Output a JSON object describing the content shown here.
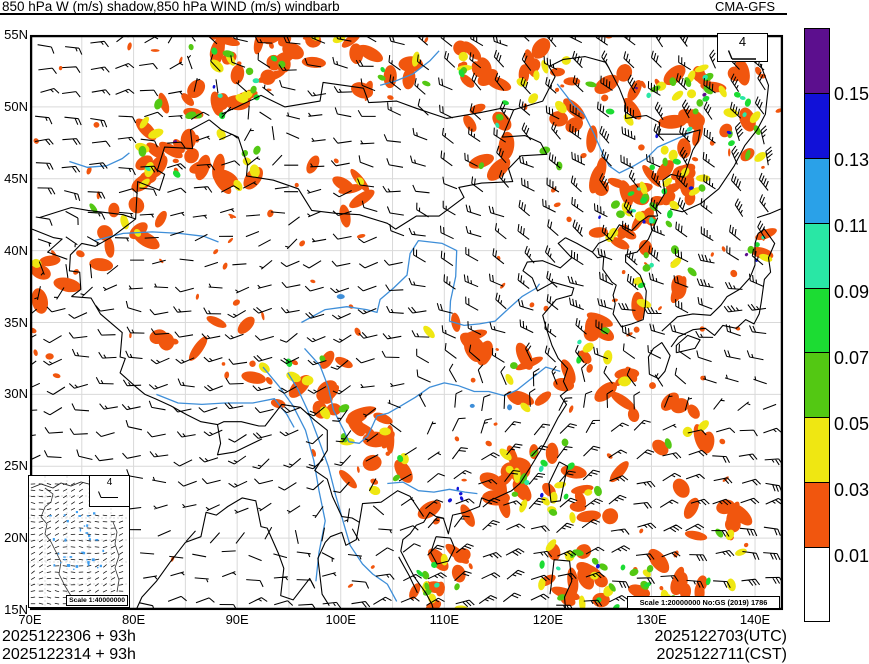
{
  "title": "850 hPa W (m/s) shadow,850 hPa WIND (m/s) windbarb",
  "model": "CMA-GFS",
  "footer": {
    "init_utc": "2025122306 + 93h",
    "init_cst": "2025122314 + 93h",
    "valid_utc": "2025122703(UTC)",
    "valid_cst": "2025122711(CST)"
  },
  "axes": {
    "x_ticks": [
      "70E",
      "80E",
      "90E",
      "100E",
      "110E",
      "120E",
      "130E",
      "140E"
    ],
    "y_ticks": [
      "55N",
      "50N",
      "45N",
      "40N",
      "35N",
      "30N",
      "25N",
      "20N",
      "15N"
    ]
  },
  "colorbar": {
    "labels_top_to_bottom": [
      "0.15",
      "0.13",
      "0.11",
      "0.09",
      "0.07",
      "0.05",
      "0.03",
      "0.01"
    ],
    "colors_top_to_bottom": [
      "#5c0f8e",
      "#1111d8",
      "#2aa1e8",
      "#29e7a5",
      "#1cdc33",
      "#53c813",
      "#efe712",
      "#f1560e",
      "#ffffff"
    ]
  },
  "windbarb_legend": {
    "value": "4"
  },
  "inset": {
    "legend_value": "4",
    "scale_label": "Scale 1:40000000"
  },
  "map_scale_label": "Scale 1:20000000 No:GS (2019) 1786",
  "chart_data": {
    "type": "windbarb_map",
    "shaded_variable": "850 hPa vertical velocity W (m/s)",
    "barb_variable": "850 hPa wind (m/s)",
    "lon_range": [
      70,
      142.7
    ],
    "lat_range": [
      15,
      55
    ],
    "barb_full_tick_value": 4,
    "shade_levels": [
      0.01,
      0.03,
      0.05,
      0.07,
      0.09,
      0.11,
      0.13,
      0.15
    ],
    "shade_palette": [
      "#ffffff",
      "#f1560e",
      "#efe712",
      "#53c813",
      "#1cdc33",
      "#29e7a5",
      "#2aa1e8",
      "#1111d8",
      "#5c0f8e"
    ],
    "grid_color": "#d9d9d9",
    "river_color": "#3e8ed8",
    "wind_grid": {
      "lons": [
        70,
        80,
        90,
        100,
        110,
        120,
        130,
        140
      ],
      "lats": [
        55,
        45,
        35,
        25,
        15
      ],
      "u": [
        [
          -6,
          -5,
          8,
          8,
          8,
          10,
          10,
          8
        ],
        [
          -8,
          -8,
          -6,
          3,
          6,
          10,
          12,
          6
        ],
        [
          4,
          6,
          7,
          6,
          8,
          9,
          12,
          12
        ],
        [
          5,
          6,
          6,
          5,
          -6,
          -8,
          -9,
          -10
        ],
        [
          -5,
          -6,
          -6,
          -7,
          -8,
          -10,
          -10,
          -10
        ]
      ],
      "v": [
        [
          0,
          -3,
          -2,
          -1,
          -5,
          -8,
          -10,
          -10
        ],
        [
          1,
          0,
          -2,
          1,
          -3,
          -8,
          -10,
          -12
        ],
        [
          3,
          0,
          2,
          4,
          -2,
          -6,
          -4,
          0
        ],
        [
          1,
          0,
          2,
          5,
          -5,
          -6,
          -3,
          -1
        ],
        [
          0,
          0,
          -1,
          -2,
          -5,
          -3,
          -1,
          -2
        ]
      ]
    },
    "shade_clusters": [
      {
        "lon": 86.5,
        "lat": 48,
        "rx": 6,
        "ry": 3.5,
        "counts": [
          24,
          10,
          6,
          3,
          2,
          1,
          1
        ]
      },
      {
        "lon": 92,
        "lat": 52.5,
        "rx": 4,
        "ry": 2.2,
        "counts": [
          10,
          3,
          2,
          1,
          1,
          0,
          0
        ]
      },
      {
        "lon": 104,
        "lat": 53,
        "rx": 4.5,
        "ry": 2,
        "counts": [
          8,
          2,
          2,
          1,
          0,
          0,
          0
        ]
      },
      {
        "lon": 117,
        "lat": 50,
        "rx": 5.5,
        "ry": 4.5,
        "counts": [
          20,
          8,
          5,
          2,
          1,
          0,
          0
        ]
      },
      {
        "lon": 129,
        "lat": 48.5,
        "rx": 6.5,
        "ry": 5,
        "counts": [
          24,
          10,
          7,
          4,
          3,
          2,
          1
        ]
      },
      {
        "lon": 137,
        "lat": 49.5,
        "rx": 3.5,
        "ry": 3,
        "counts": [
          8,
          5,
          6,
          4,
          3,
          1,
          1
        ]
      },
      {
        "lon": 131.5,
        "lat": 40,
        "rx": 3,
        "ry": 4.5,
        "counts": [
          10,
          6,
          6,
          3,
          2,
          1,
          0
        ]
      },
      {
        "lon": 127,
        "lat": 42.5,
        "rx": 2.5,
        "ry": 2,
        "counts": [
          8,
          4,
          3,
          2,
          1,
          1,
          1
        ]
      },
      {
        "lon": 79,
        "lat": 41.5,
        "rx": 5.5,
        "ry": 2.5,
        "counts": [
          8,
          2,
          1,
          0,
          0,
          0,
          0
        ]
      },
      {
        "lon": 97,
        "lat": 30.8,
        "rx": 3.5,
        "ry": 2.2,
        "counts": [
          9,
          3,
          2,
          1,
          0,
          0,
          0
        ]
      },
      {
        "lon": 103,
        "lat": 26,
        "rx": 3.5,
        "ry": 2.8,
        "counts": [
          11,
          4,
          2,
          1,
          0,
          0,
          0
        ]
      },
      {
        "lon": 118.5,
        "lat": 24.5,
        "rx": 4,
        "ry": 3,
        "counts": [
          16,
          8,
          5,
          3,
          2,
          1,
          0
        ]
      },
      {
        "lon": 109,
        "lat": 17,
        "rx": 2.8,
        "ry": 2,
        "counts": [
          8,
          4,
          4,
          2,
          1,
          0,
          0
        ]
      },
      {
        "lon": 131,
        "lat": 16.5,
        "rx": 7,
        "ry": 2,
        "counts": [
          12,
          9,
          8,
          4,
          1,
          0,
          0
        ]
      },
      {
        "lon": 122,
        "lat": 17.5,
        "rx": 3,
        "ry": 2.2,
        "counts": [
          8,
          4,
          3,
          2,
          1,
          1,
          0
        ]
      },
      {
        "lon": 87.5,
        "lat": 54.5,
        "rx": 2,
        "ry": 1,
        "counts": [
          3,
          2,
          2,
          1,
          0,
          0,
          0
        ]
      },
      {
        "lon": 100,
        "lat": 44.5,
        "rx": 4,
        "ry": 2.5,
        "counts": [
          6,
          1,
          0,
          0,
          0,
          0,
          0
        ]
      },
      {
        "lon": 119,
        "lat": 31,
        "rx": 3,
        "ry": 2.2,
        "counts": [
          7,
          2,
          1,
          0,
          0,
          0,
          0
        ]
      },
      {
        "lon": 111.5,
        "lat": 33.5,
        "rx": 3,
        "ry": 1.8,
        "counts": [
          5,
          1,
          0,
          0,
          0,
          0,
          0
        ]
      },
      {
        "lon": 124.5,
        "lat": 23,
        "rx": 2.5,
        "ry": 2,
        "counts": [
          6,
          2,
          1,
          0,
          0,
          0,
          0
        ]
      },
      {
        "lon": 88,
        "lat": 33,
        "rx": 6,
        "ry": 2.5,
        "counts": [
          6,
          1,
          0,
          0,
          0,
          0,
          0
        ]
      },
      {
        "lon": 110.5,
        "lat": 22.3,
        "rx": 2.5,
        "ry": 1.2,
        "counts": [
          2,
          0,
          0,
          0,
          0,
          4,
          0
        ]
      },
      {
        "lon": 140.3,
        "lat": 40,
        "rx": 1.3,
        "ry": 1.3,
        "counts": [
          2,
          1,
          1,
          1,
          1,
          1,
          1
        ]
      },
      {
        "lon": 124,
        "lat": 34,
        "rx": 1.8,
        "ry": 1.8,
        "counts": [
          5,
          2,
          1,
          1,
          1,
          0,
          0
        ]
      },
      {
        "lon": 135.5,
        "lat": 21.5,
        "rx": 3.5,
        "ry": 2.5,
        "counts": [
          7,
          2,
          1,
          0,
          0,
          0,
          0
        ]
      },
      {
        "lon": 96,
        "lat": 53.8,
        "rx": 3,
        "ry": 1.2,
        "counts": [
          5,
          1,
          1,
          0,
          0,
          0,
          0
        ]
      },
      {
        "lon": 72.5,
        "lat": 37.5,
        "rx": 2,
        "ry": 2.5,
        "counts": [
          5,
          1,
          0,
          0,
          0,
          0,
          0
        ]
      },
      {
        "lon": 133,
        "lat": 28,
        "rx": 2.5,
        "ry": 2.5,
        "counts": [
          6,
          2,
          1,
          0,
          0,
          0,
          0
        ]
      },
      {
        "lon": 126.5,
        "lat": 30.5,
        "rx": 2,
        "ry": 2,
        "counts": [
          5,
          1,
          0,
          0,
          0,
          0,
          0
        ]
      }
    ],
    "speckle_count": 160
  }
}
